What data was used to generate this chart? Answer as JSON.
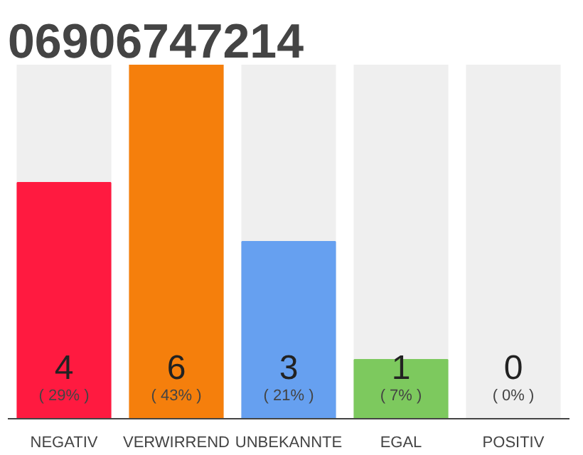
{
  "chart_data": {
    "type": "bar",
    "title": "06906747214",
    "categories": [
      "NEGATIV",
      "VERWIRREND",
      "UNBEKANNTE",
      "EGAL",
      "POSITIV"
    ],
    "values": [
      4,
      6,
      3,
      1,
      0
    ],
    "colors": [
      "#ff1a40",
      "#f57f0c",
      "#66a0f0",
      "#7dc95e",
      "#dddddd"
    ],
    "data_labels": true,
    "annotations": [
      "( 29% )",
      "( 43% )",
      "( 21% )",
      "( 7% )",
      "( 0% )"
    ],
    "grid": false
  }
}
